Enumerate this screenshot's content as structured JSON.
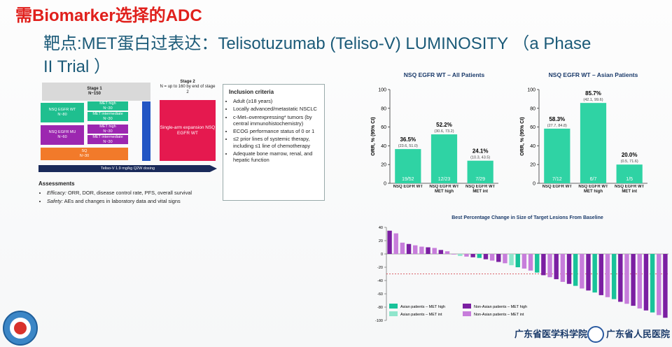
{
  "header": {
    "title": "需Biomarker选择的ADC",
    "subtitle": "靶点:MET蛋白过表达：Telisotuzumab (Teliso-V) LUMINOSITY （a Phase II Trial ）"
  },
  "design": {
    "stage1": "Stage 1",
    "stage1_n": "N~150",
    "wt": "NSQ EGFR WT",
    "wt_n": "N~80",
    "wt_high": "MET high",
    "wt_high_n": "N~30",
    "wt_int": "MET intermediate",
    "wt_int_n": "N~30",
    "mu": "NSQ EGFR MU",
    "mu_n": "N~60",
    "mu_high": "MET high",
    "mu_high_n": "N~30",
    "mu_int": "MET intermediate",
    "mu_int_n": "N~30",
    "sq": "SQ",
    "sq_n": "N~30",
    "stage2": "Stage 2",
    "stage2_n": "N = up to 160 by end of stage 2",
    "expansion": "Single-arm expansion NSQ EGFR WT",
    "dosing": "Teliso-V 1.9 mg/kg Q2W dosing"
  },
  "inclusion": {
    "title": "Inclusion criteria",
    "items": [
      "Adult (≥18 years)",
      "Locally advanced/metastatic NSCLC",
      "c-Met–overexpressing* tumors (by central immunohistochemistry)",
      "ECOG performance status of 0 or 1",
      "≤2 prior lines of systemic therapy, including ≤1 line of chemotherapy",
      "Adequate bone marrow, renal, and hepatic function"
    ]
  },
  "assessments": {
    "title": "Assessments",
    "items": [
      {
        "label": "Efficacy:",
        "text": "ORR, DOR, disease control rate, PFS, overall survival"
      },
      {
        "label": "Safety:",
        "text": "AEs and changes in laboratory data and vital signs"
      }
    ]
  },
  "footer": {
    "org1": "广东省医学科学院",
    "org2": "广东省人民医院"
  },
  "chart_data": [
    {
      "type": "bar",
      "title": "NSQ EGFR WT – All Patients",
      "y_label": "ORR, % (95% CI)",
      "color": "#2fd3a4",
      "categories": [
        "NSQ EGFR WT",
        "NSQ EGFR WT MET high",
        "NSQ EGFR WT MET int"
      ],
      "values": [
        36.5,
        52.2,
        24.1
      ],
      "value_labels": [
        "36.5%",
        "52.2%",
        "24.1%"
      ],
      "ci_labels": [
        "(23.6, 51.0)",
        "(30.6, 73.2)",
        "(10.3, 43.5)"
      ],
      "count_labels": [
        "19/52",
        "12/23",
        "7/29"
      ],
      "ylim": [
        0,
        100
      ],
      "yticks": [
        0,
        20,
        40,
        60,
        80,
        100
      ]
    },
    {
      "type": "bar",
      "title": "NSQ EGFR WT – Asian Patients",
      "y_label": "ORR, % (95% CI)",
      "color": "#2fd3a4",
      "categories": [
        "NSQ EGFR WT",
        "NSQ EGFR WT MET high",
        "NSQ EGFR WT MET int"
      ],
      "values": [
        58.3,
        85.7,
        20.0
      ],
      "value_labels": [
        "58.3%",
        "85.7%",
        "20.0%"
      ],
      "ci_labels": [
        "(27.7, 84.8)",
        "(42.1, 99.6)",
        "(0.5, 71.6)"
      ],
      "count_labels": [
        "7/12",
        "6/7",
        "1/5"
      ],
      "ylim": [
        0,
        100
      ],
      "yticks": [
        0,
        20,
        40,
        60,
        80,
        100
      ]
    },
    {
      "type": "waterfall",
      "title": "Best Percentage Change in Size of Target Lesions From Baseline",
      "ylim": [
        -100,
        40
      ],
      "yticks": [
        40,
        20,
        0,
        -20,
        -40,
        -60,
        -80,
        -100
      ],
      "reference_line": -30,
      "series": [
        {
          "name": "Asian patients – MET high",
          "color": "#19c39a",
          "values": [
            null,
            null,
            null,
            null,
            null,
            null,
            null,
            null,
            null,
            null,
            null,
            null,
            null,
            null,
            -6,
            null,
            null,
            null,
            null,
            null,
            -20,
            null,
            null,
            -28,
            null,
            null,
            null,
            null,
            null,
            -48,
            null,
            null,
            -58,
            null,
            null,
            -68,
            null,
            null,
            null,
            null,
            null,
            -88,
            null,
            null
          ]
        },
        {
          "name": "Asian patients – MET int",
          "color": "#8fe6cc",
          "values": [
            null,
            null,
            null,
            null,
            null,
            null,
            null,
            null,
            null,
            null,
            null,
            -3,
            null,
            null,
            null,
            null,
            null,
            null,
            null,
            -17,
            null,
            null,
            null,
            null,
            null,
            null,
            null,
            null,
            null,
            null,
            null,
            null,
            null,
            null,
            null,
            null,
            null,
            null,
            null,
            null,
            null,
            null,
            null,
            null
          ]
        },
        {
          "name": "Non-Asian patients – MET high",
          "color": "#7b1fa2",
          "values": [
            35,
            null,
            null,
            15,
            null,
            null,
            10,
            null,
            6,
            null,
            null,
            null,
            null,
            -5,
            null,
            -8,
            null,
            -12,
            null,
            null,
            null,
            null,
            null,
            null,
            -32,
            null,
            -38,
            null,
            -45,
            null,
            null,
            -55,
            null,
            -62,
            null,
            null,
            -72,
            null,
            -78,
            null,
            -85,
            null,
            null,
            -96
          ]
        },
        {
          "name": "Non-Asian patients – MET int",
          "color": "#c77ddb",
          "values": [
            null,
            31,
            17,
            null,
            13,
            11,
            null,
            9,
            null,
            4,
            0,
            null,
            -4,
            null,
            null,
            null,
            -10,
            null,
            -14,
            null,
            null,
            -22,
            -25,
            null,
            null,
            -35,
            null,
            -42,
            null,
            null,
            -52,
            null,
            null,
            null,
            -65,
            null,
            null,
            -75,
            null,
            -82,
            null,
            null,
            -92,
            null
          ]
        }
      ]
    }
  ]
}
